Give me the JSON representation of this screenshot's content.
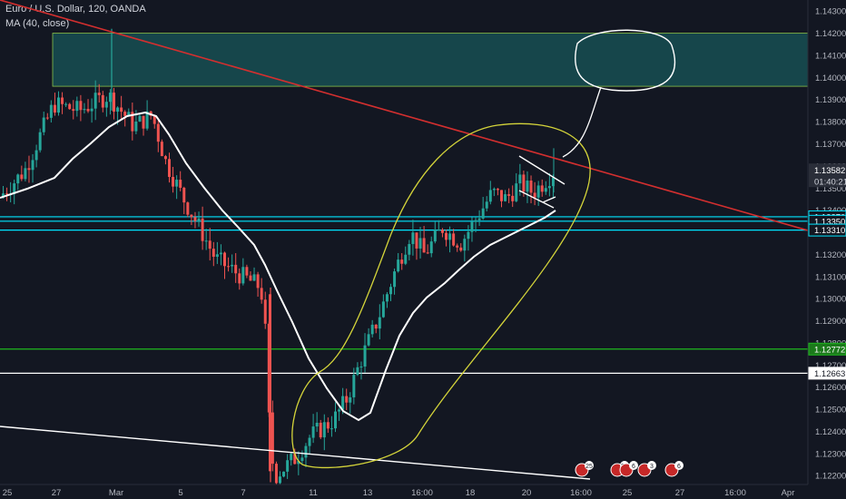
{
  "header": {
    "symbol_line": "Euro / U.S. Dollar, 120, OANDA",
    "indicator_line": "MA (40, close)"
  },
  "chart_data": {
    "type": "candlestick",
    "ylim": [
      1.1216,
      1.1435
    ],
    "y_ticks": [
      "1.14300",
      "1.14200",
      "1.14100",
      "1.14000",
      "1.13900",
      "1.13800",
      "1.13700",
      "1.13600",
      "1.13500",
      "1.13400",
      "1.13300",
      "1.13200",
      "1.13100",
      "1.13000",
      "1.12900",
      "1.12800",
      "1.12700",
      "1.12600",
      "1.12500",
      "1.12400",
      "1.12300",
      "1.12200"
    ],
    "x_labels": [
      "25",
      "27",
      "Mar",
      "5",
      "7",
      "11",
      "13",
      "16:00",
      "18",
      "20",
      "16:00",
      "25",
      "27",
      "16:00",
      "Apr"
    ],
    "price_levels": [
      {
        "price": 1.1337,
        "label": "1.13370",
        "color": "#00e5ff"
      },
      {
        "price": 1.1335,
        "label": "1.13350",
        "color": "#00e5ff"
      },
      {
        "price": 1.1331,
        "label": "1.13310",
        "color": "#00e5ff"
      },
      {
        "price": 1.12772,
        "label": "1.12772",
        "color": "#1fb81f"
      },
      {
        "price": 1.12663,
        "label": "1.12663",
        "color": "#ffffff"
      }
    ],
    "last_price": {
      "label": "1.13582",
      "countdown": "01:40:21"
    },
    "zone": {
      "top": 1.142,
      "bottom": 1.1396,
      "color": "#1a6e6e"
    },
    "event_badges": [
      "25",
      "5",
      "7",
      "6",
      "3",
      "6"
    ],
    "colors": {
      "up": "#26a69a",
      "down": "#ef5350",
      "ma": "#ffffff",
      "trendline": "#d32f2f",
      "channel": "#d4d43a"
    }
  }
}
